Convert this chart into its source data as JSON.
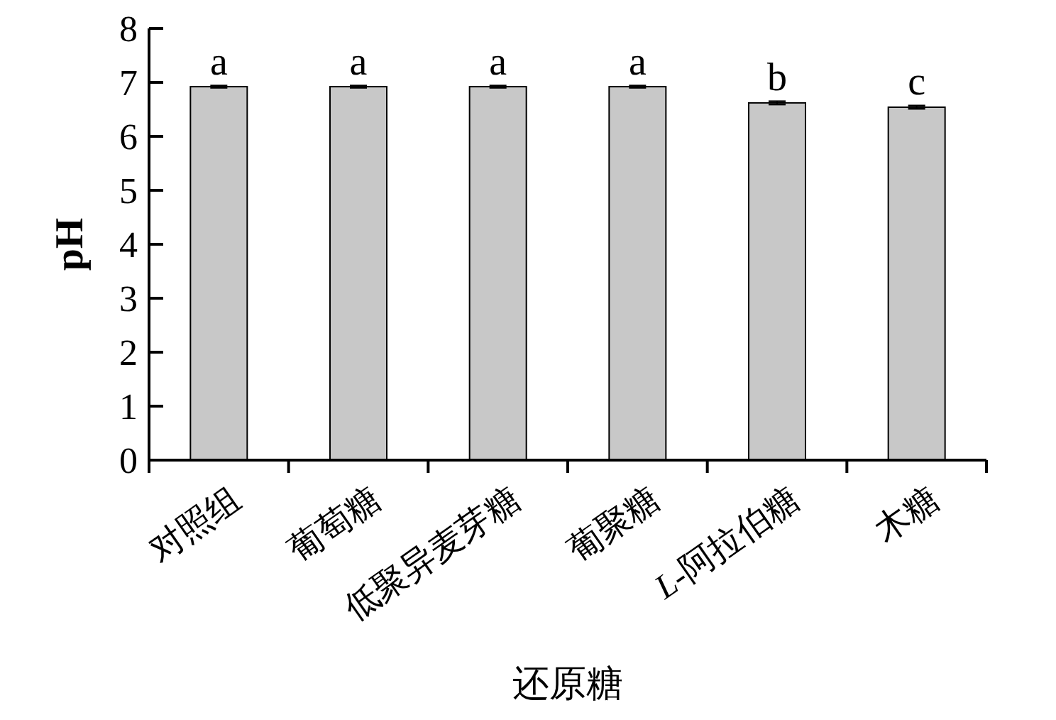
{
  "chart_data": {
    "type": "bar",
    "xlabel": "还原糖",
    "ylabel": "pH",
    "categories": [
      "对照组",
      "葡萄糖",
      "低聚异麦芽糖",
      "葡聚糖",
      "*L*-阿拉伯糖",
      "木糖"
    ],
    "values": [
      6.92,
      6.92,
      6.92,
      6.92,
      6.62,
      6.54
    ],
    "errors": [
      0.02,
      0.02,
      0.02,
      0.02,
      0.03,
      0.03
    ],
    "color": "#c8c8c8",
    "ylim": [
      0,
      8
    ],
    "yticks": [
      0,
      1,
      2,
      3,
      4,
      5,
      6,
      7,
      8
    ],
    "annotations": [
      {
        "text": "a",
        "x": "对照组",
        "y": 6.94
      },
      {
        "text": "a",
        "x": "葡萄糖",
        "y": 6.94
      },
      {
        "text": "a",
        "x": "低聚异麦芽糖",
        "y": 6.94
      },
      {
        "text": "a",
        "x": "葡聚糖",
        "y": 6.94
      },
      {
        "text": "b",
        "x": "*L*-阿拉伯糖",
        "y": 6.65
      },
      {
        "text": "c",
        "x": "木糖",
        "y": 6.57
      }
    ]
  }
}
